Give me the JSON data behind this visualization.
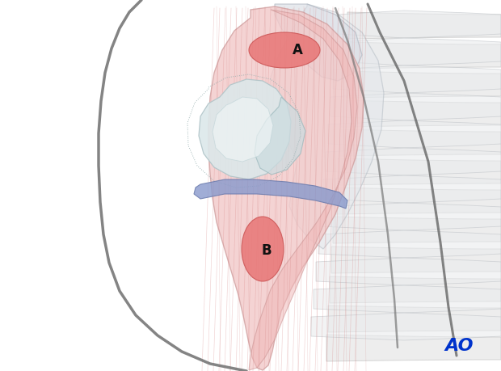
{
  "bg_color": "#ffffff",
  "fig_width": 6.2,
  "fig_height": 4.59,
  "dpi": 100,
  "ao_text": "AO",
  "ao_color": "#0033cc",
  "ao_fontsize": 16,
  "label_A_text": "A",
  "label_B_text": "B",
  "label_color": "#111111",
  "landmark_A_color": "#e87878",
  "landmark_B_color": "#e87878",
  "muscle_fill": "#f2c8c8",
  "muscle_fill2": "#f0d0d0",
  "bone_fill": "#e8eeee",
  "bone_fill2": "#d8e4e8",
  "fiber_color": "#d88888",
  "blue_band_color": "#8899cc",
  "gray_line": "#888888",
  "dark_curve": "#666666",
  "rib_fill": "#e8e8e8",
  "rib_edge": "#c8c8c8",
  "scapula_fill": "#e0e4e8",
  "scapula_edge": "#b8c0c8"
}
